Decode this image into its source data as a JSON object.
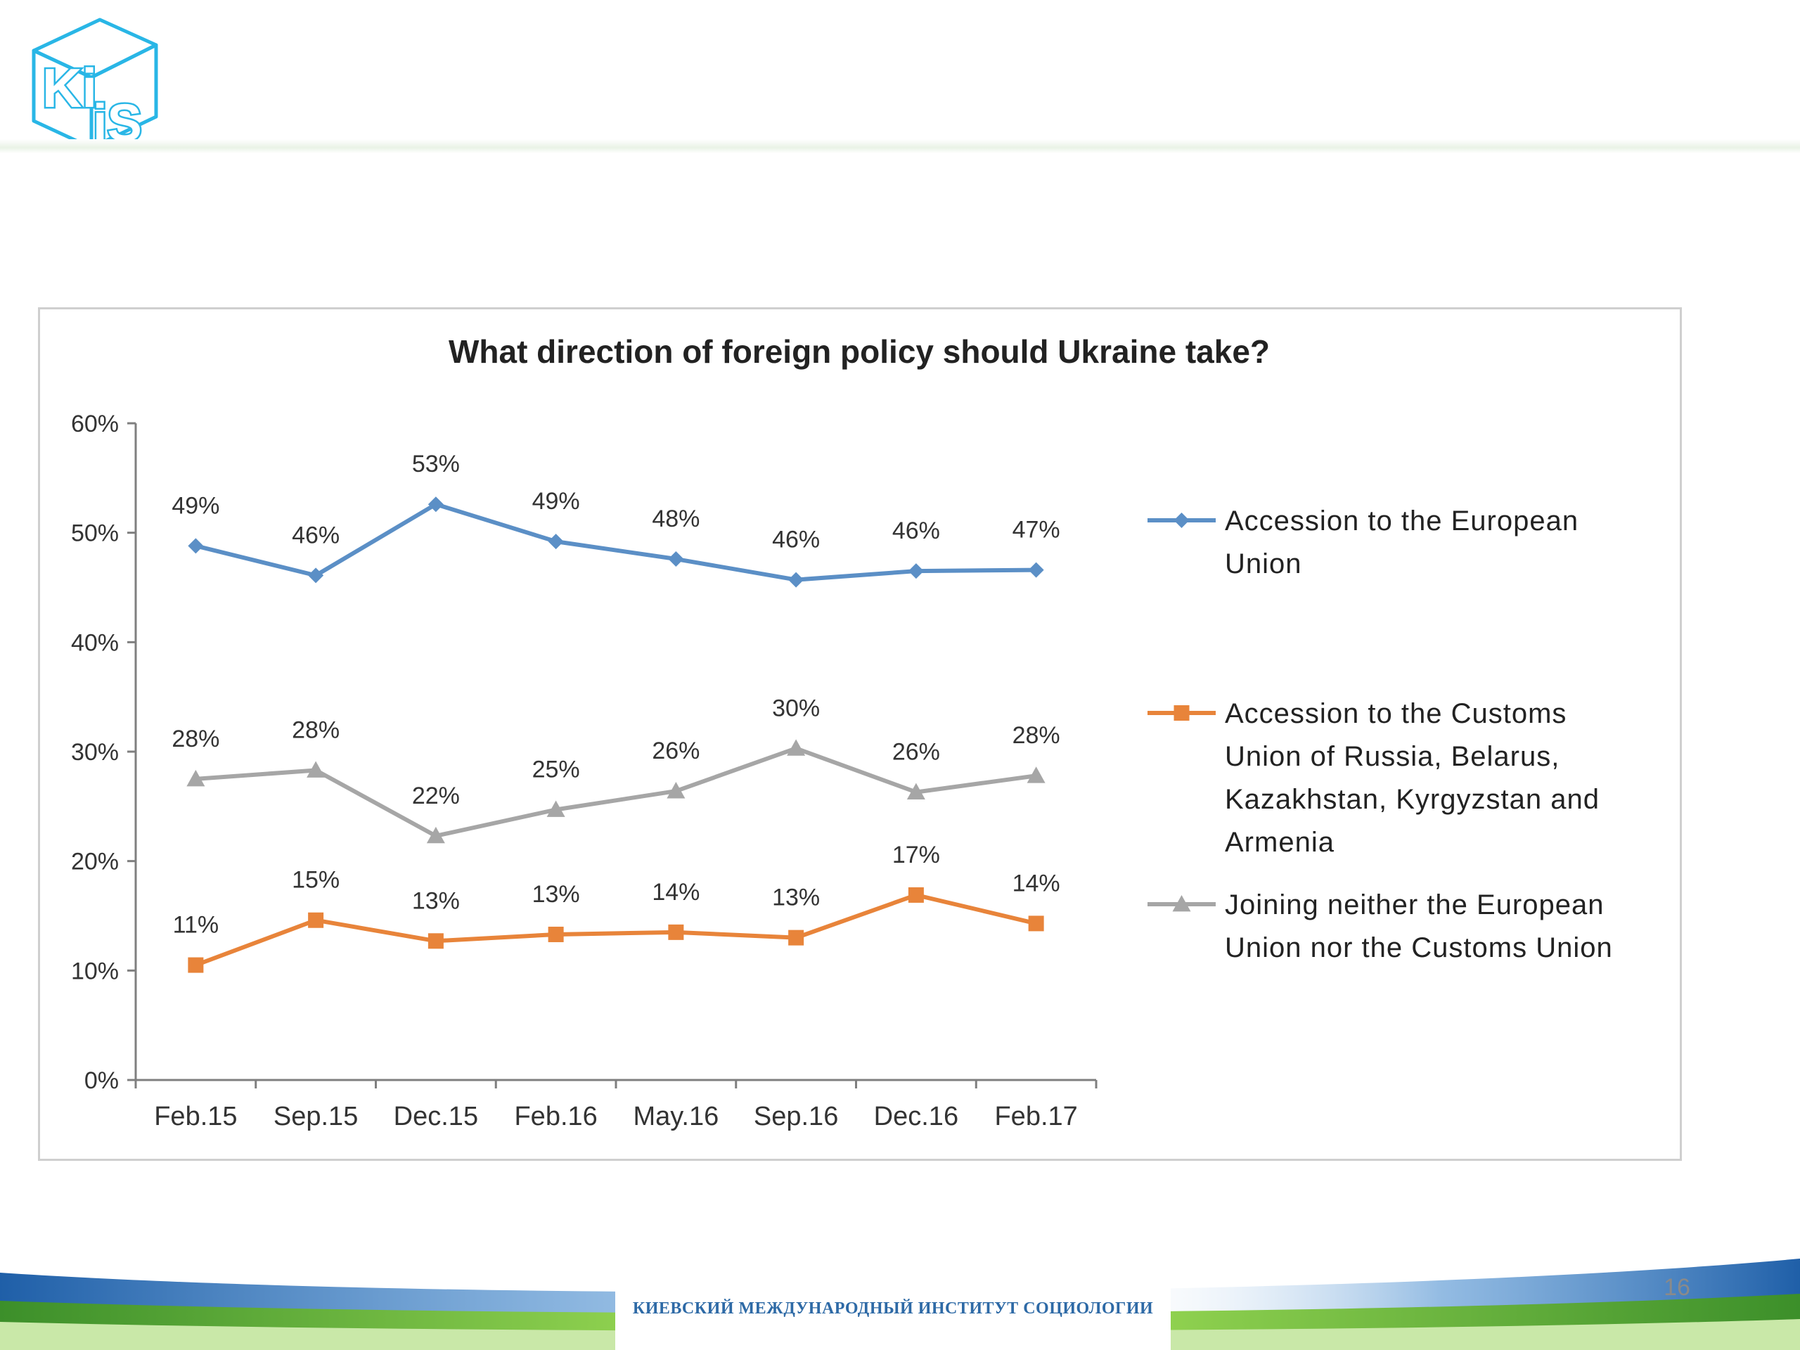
{
  "slide": {
    "logo_text": "KiiS",
    "footer_text": "КИЕВСКИЙ МЕЖДУНАРОДНЫЙ ИНСТИТУТ СОЦИОЛОГИИ",
    "page_number": "16"
  },
  "colors": {
    "eu": "#5b8fc6",
    "customs": "#e8843a",
    "neither": "#a6a6a6",
    "logo": "#29b6e6",
    "footer_text": "#2e6aa6"
  },
  "chart_data": {
    "type": "line",
    "title": "What direction of foreign policy should Ukraine take?",
    "xlabel": "",
    "ylabel": "",
    "categories": [
      "Feb.15",
      "Sep.15",
      "Dec.15",
      "Feb.16",
      "May.16",
      "Sep.16",
      "Dec.16",
      "Feb.17"
    ],
    "ylim": [
      0,
      60
    ],
    "yticks": [
      "0%",
      "10%",
      "20%",
      "30%",
      "40%",
      "50%",
      "60%"
    ],
    "grid": false,
    "legend_position": "right",
    "series": [
      {
        "name": "Accession to the European Union",
        "legend_lines": [
          "Accession to the European",
          "Union"
        ],
        "marker": "diamond",
        "values": [
          48.8,
          46.1,
          52.6,
          49.2,
          47.6,
          45.7,
          46.5,
          46.6
        ],
        "labels": [
          "49%",
          "46%",
          "53%",
          "49%",
          "48%",
          "46%",
          "46%",
          "47%"
        ]
      },
      {
        "name": "Accession to the Customs Union of Russia, Belarus, Kazakhstan, Kyrgyzstan and Armenia",
        "legend_lines": [
          "Accession to the Customs",
          "Union of Russia, Belarus,",
          "Kazakhstan, Kyrgyzstan and",
          "Armenia"
        ],
        "marker": "square",
        "values": [
          10.5,
          14.6,
          12.7,
          13.3,
          13.5,
          13.0,
          16.9,
          14.3
        ],
        "labels": [
          "11%",
          "15%",
          "13%",
          "13%",
          "14%",
          "13%",
          "17%",
          "14%"
        ]
      },
      {
        "name": "Joining neither the European Union nor the Customs Union",
        "legend_lines": [
          "Joining neither the European",
          "Union nor the Customs Union"
        ],
        "marker": "triangle",
        "values": [
          27.5,
          28.3,
          22.3,
          24.7,
          26.4,
          30.3,
          26.3,
          27.8
        ],
        "labels": [
          "28%",
          "28%",
          "22%",
          "25%",
          "26%",
          "30%",
          "26%",
          "28%"
        ]
      }
    ]
  }
}
